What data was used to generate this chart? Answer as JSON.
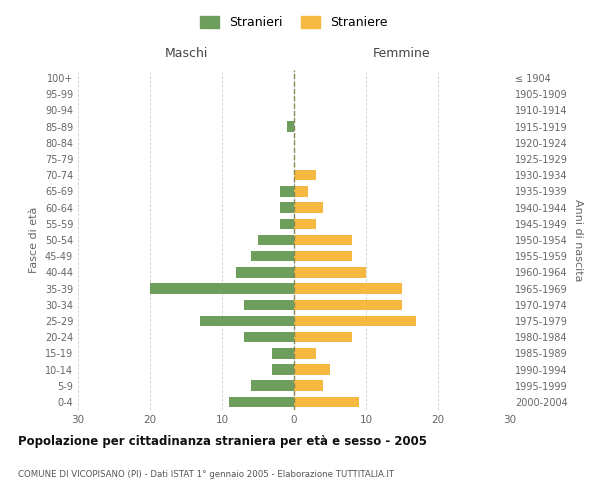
{
  "age_groups": [
    "0-4",
    "5-9",
    "10-14",
    "15-19",
    "20-24",
    "25-29",
    "30-34",
    "35-39",
    "40-44",
    "45-49",
    "50-54",
    "55-59",
    "60-64",
    "65-69",
    "70-74",
    "75-79",
    "80-84",
    "85-89",
    "90-94",
    "95-99",
    "100+"
  ],
  "birth_years": [
    "2000-2004",
    "1995-1999",
    "1990-1994",
    "1985-1989",
    "1980-1984",
    "1975-1979",
    "1970-1974",
    "1965-1969",
    "1960-1964",
    "1955-1959",
    "1950-1954",
    "1945-1949",
    "1940-1944",
    "1935-1939",
    "1930-1934",
    "1925-1929",
    "1920-1924",
    "1915-1919",
    "1910-1914",
    "1905-1909",
    "≤ 1904"
  ],
  "maschi": [
    9,
    6,
    3,
    3,
    7,
    13,
    7,
    20,
    8,
    6,
    5,
    2,
    2,
    2,
    0,
    0,
    0,
    1,
    0,
    0,
    0
  ],
  "femmine": [
    9,
    4,
    5,
    3,
    8,
    17,
    15,
    15,
    10,
    8,
    8,
    3,
    4,
    2,
    3,
    0,
    0,
    0,
    0,
    0,
    0
  ],
  "maschi_color": "#6e9e5e",
  "femmine_color": "#f5b942",
  "title": "Popolazione per cittadinanza straniera per età e sesso - 2005",
  "subtitle": "COMUNE DI VICOPISANO (PI) - Dati ISTAT 1° gennaio 2005 - Elaborazione TUTTITALIA.IT",
  "xlabel_left": "Maschi",
  "xlabel_right": "Femmine",
  "ylabel_left": "Fasce di età",
  "ylabel_right": "Anni di nascita",
  "legend_maschi": "Stranieri",
  "legend_femmine": "Straniere",
  "xlim": 30,
  "background_color": "#ffffff",
  "grid_color": "#d0d0d0"
}
